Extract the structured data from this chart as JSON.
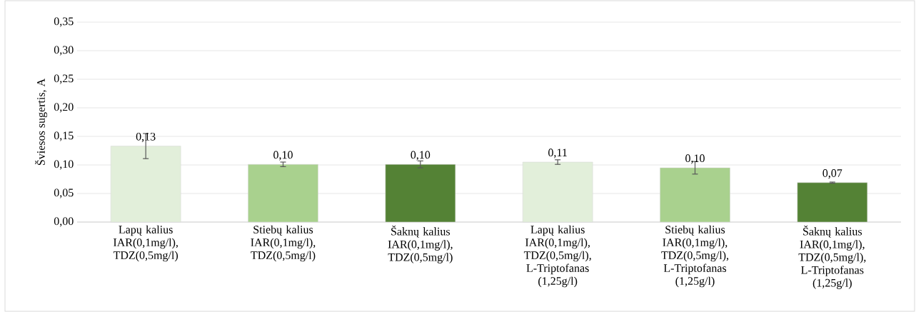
{
  "chart_data": {
    "type": "bar",
    "ylabel": "Šviesos sugertis, A",
    "categories": [
      "Lapų kalius IAR(0,1mg/l), TDZ(0,5mg/l)",
      "Stiebų kalius IAR(0,1mg/l), TDZ(0,5mg/l)",
      "Šaknų kalius IAR(0,1mg/l), TDZ(0,5mg/l)",
      "Lapų kalius IAR(0,1mg/l), TDZ(0,5mg/l), L-Triptofanas (1,25g/l)",
      "Stiebų kalius IAR(0,1mg/l), TDZ(0,5mg/l), L-Triptofanas (1,25g/l)",
      "Šaknų kalius IAR(0,1mg/l), TDZ(0,5mg/l), L-Triptofanas (1,25g/l)"
    ],
    "values": [
      0.133,
      0.101,
      0.101,
      0.105,
      0.095,
      0.069
    ],
    "errors": [
      0.022,
      0.004,
      0.006,
      0.004,
      0.011,
      0.001
    ],
    "value_labels": [
      "0,13",
      "0,10",
      "0,10",
      "0,11",
      "0,10",
      "0,07"
    ],
    "colors": [
      "#e2efda",
      "#a9d18e",
      "#548235",
      "#e2efda",
      "#a9d18e",
      "#548235"
    ],
    "ylim": [
      0,
      0.35
    ],
    "yticks": [
      {
        "value": 0,
        "label": "0,00"
      },
      {
        "value": 0.05,
        "label": "0,05"
      },
      {
        "value": 0.1,
        "label": "0,10"
      },
      {
        "value": 0.15,
        "label": "0,15"
      },
      {
        "value": 0.2,
        "label": "0,20"
      },
      {
        "value": 0.25,
        "label": "0,25"
      },
      {
        "value": 0.3,
        "label": "0,30"
      },
      {
        "value": 0.35,
        "label": "0,35"
      }
    ],
    "grid": "y"
  }
}
